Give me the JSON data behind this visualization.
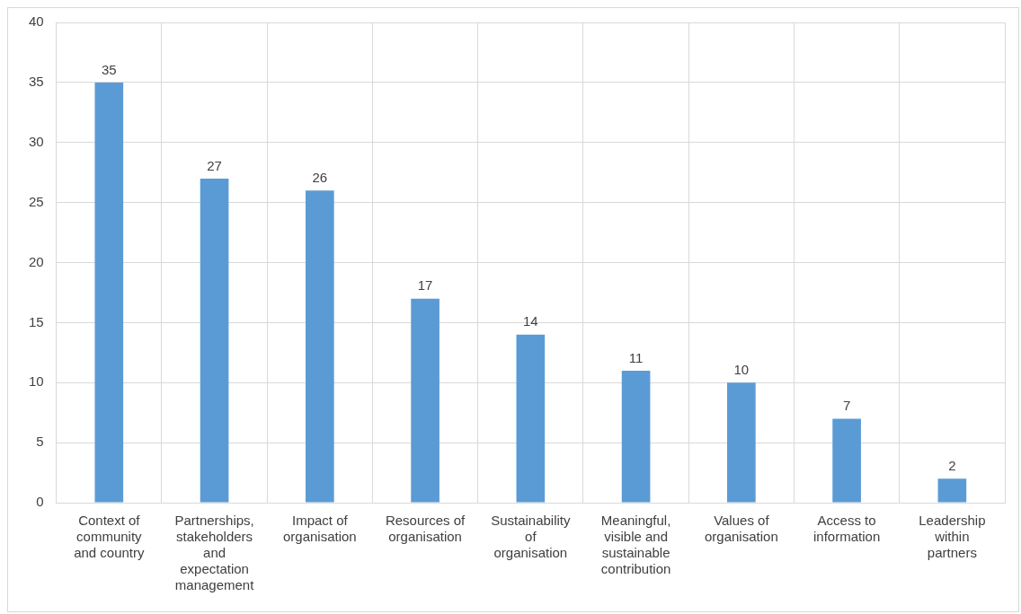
{
  "chart_data": {
    "type": "bar",
    "categories": [
      "Context of community and country",
      "Partnerships, stakeholders and expectation management",
      "Impact of organisation",
      "Resources of organisation",
      "Sustainability of organisation",
      "Meaningful, visible and sustainable contribution",
      "Values of organisation",
      "Access to information",
      "Leadership within partners"
    ],
    "values": [
      35,
      27,
      26,
      17,
      14,
      11,
      10,
      7,
      2
    ],
    "color": "#5b9bd5",
    "ylim": [
      0,
      40
    ],
    "yticks": [
      0,
      5,
      10,
      15,
      20,
      25,
      30,
      35,
      40
    ],
    "grid": true,
    "data_labels": true
  }
}
